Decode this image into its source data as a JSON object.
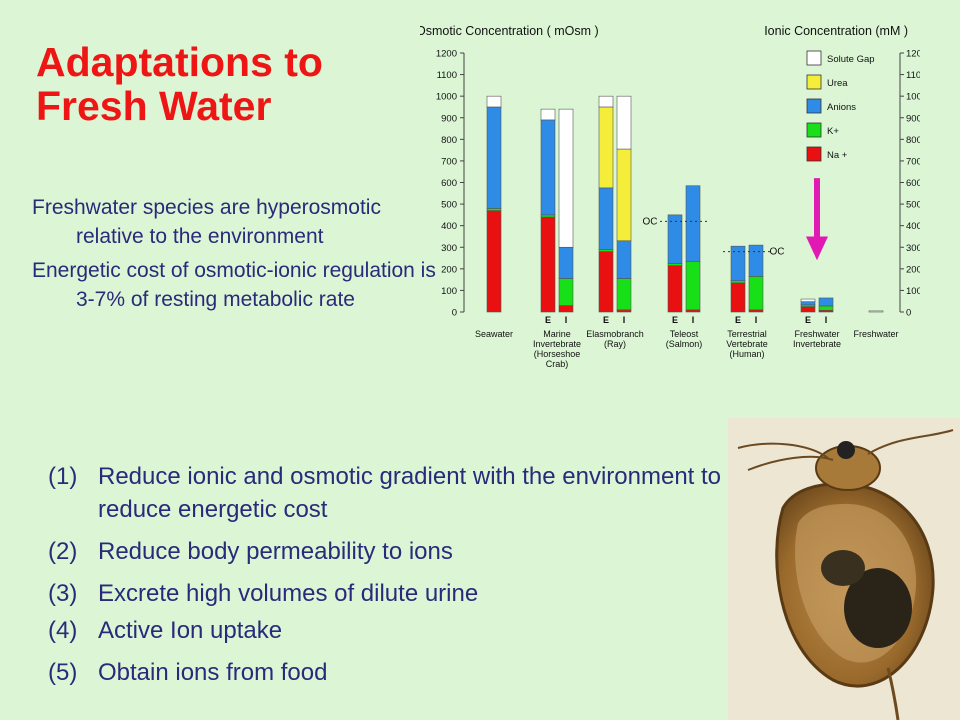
{
  "slide": {
    "title_line1": "Adaptations to",
    "title_line2": "Fresh Water",
    "bullets": [
      "Freshwater species are hyperosmotic relative to the environment",
      "Energetic cost of osmotic-ionic regulation is 3-7% of resting metabolic rate"
    ],
    "steps": [
      {
        "num": "(1)",
        "text": "Reduce ionic and osmotic gradient with the environment to reduce energetic cost"
      },
      {
        "num": "(2)",
        "text": "Reduce body permeability to ions"
      },
      {
        "num": "(3)",
        "text": "Excrete high volumes of dilute urine"
      },
      {
        "num": "(4)",
        "text": "Active Ion uptake"
      },
      {
        "num": "(5)",
        "text": "Obtain ions from food"
      }
    ]
  },
  "chart_data": {
    "type": "bar",
    "left_axis_title": "Osmotic Concentration ( mOsm )",
    "right_axis_title": "Ionic Concentration (mM )",
    "ylim": [
      0,
      1200
    ],
    "yticks": [
      0,
      100,
      200,
      300,
      400,
      500,
      600,
      700,
      800,
      900,
      1000,
      1100,
      1200
    ],
    "legend": [
      {
        "name": "Solute Gap",
        "color": "#ffffff"
      },
      {
        "name": "Urea",
        "color": "#f4ee3a"
      },
      {
        "name": "Anions",
        "color": "#2e8ce6"
      },
      {
        "name": "K+",
        "color": "#18e018"
      },
      {
        "name": "Na +",
        "color": "#e81010"
      }
    ],
    "series_order": [
      "Na +",
      "K+",
      "Anions",
      "Urea",
      "Solute Gap"
    ],
    "groups": [
      {
        "label": [
          "Seawater"
        ],
        "bars": [
          {
            "tag": "",
            "values": [
              470,
              10,
              470,
              0,
              50
            ]
          }
        ]
      },
      {
        "label": [
          "Marine",
          "Invertebrate",
          "(Horseshoe",
          "Crab)"
        ],
        "bars": [
          {
            "tag": "E",
            "values": [
              440,
              10,
              440,
              0,
              50
            ]
          },
          {
            "tag": "I",
            "values": [
              30,
              125,
              145,
              0,
              640
            ]
          }
        ]
      },
      {
        "label": [
          "Elasmobranch",
          "(Ray)"
        ],
        "bars": [
          {
            "tag": "E",
            "values": [
              280,
              10,
              285,
              375,
              50
            ]
          },
          {
            "tag": "I",
            "values": [
              10,
              145,
              175,
              425,
              245
            ]
          }
        ]
      },
      {
        "label": [
          "Teleost",
          "(Salmon)"
        ],
        "bars": [
          {
            "tag": "E",
            "values": [
              215,
              10,
              225,
              0,
              0
            ]
          },
          {
            "tag": "I",
            "values": [
              10,
              225,
              350,
              0,
              0
            ]
          }
        ]
      },
      {
        "label": [
          "Terrestrial",
          "Vertebrate",
          "(Human)"
        ],
        "bars": [
          {
            "tag": "E",
            "values": [
              135,
              10,
              160,
              0,
              0
            ]
          },
          {
            "tag": "I",
            "values": [
              10,
              155,
              145,
              0,
              0
            ]
          }
        ]
      },
      {
        "label": [
          "Freshwater",
          "Invertebrate"
        ],
        "bars": [
          {
            "tag": "E",
            "values": [
              25,
              8,
              15,
              0,
              12
            ]
          },
          {
            "tag": "I",
            "values": [
              8,
              20,
              37,
              0,
              0
            ]
          }
        ]
      },
      {
        "label": [
          "Freshwater"
        ],
        "bars": [
          {
            "tag": "",
            "values": [
              0,
              0,
              0,
              0,
              5
            ]
          }
        ]
      }
    ],
    "oc_markers": [
      {
        "text": "OC",
        "value": 420,
        "group": 3
      },
      {
        "text": "OC",
        "value": 280,
        "group": 4
      }
    ],
    "highlight_arrow": {
      "group": 5,
      "color": "#e21ab4"
    }
  }
}
